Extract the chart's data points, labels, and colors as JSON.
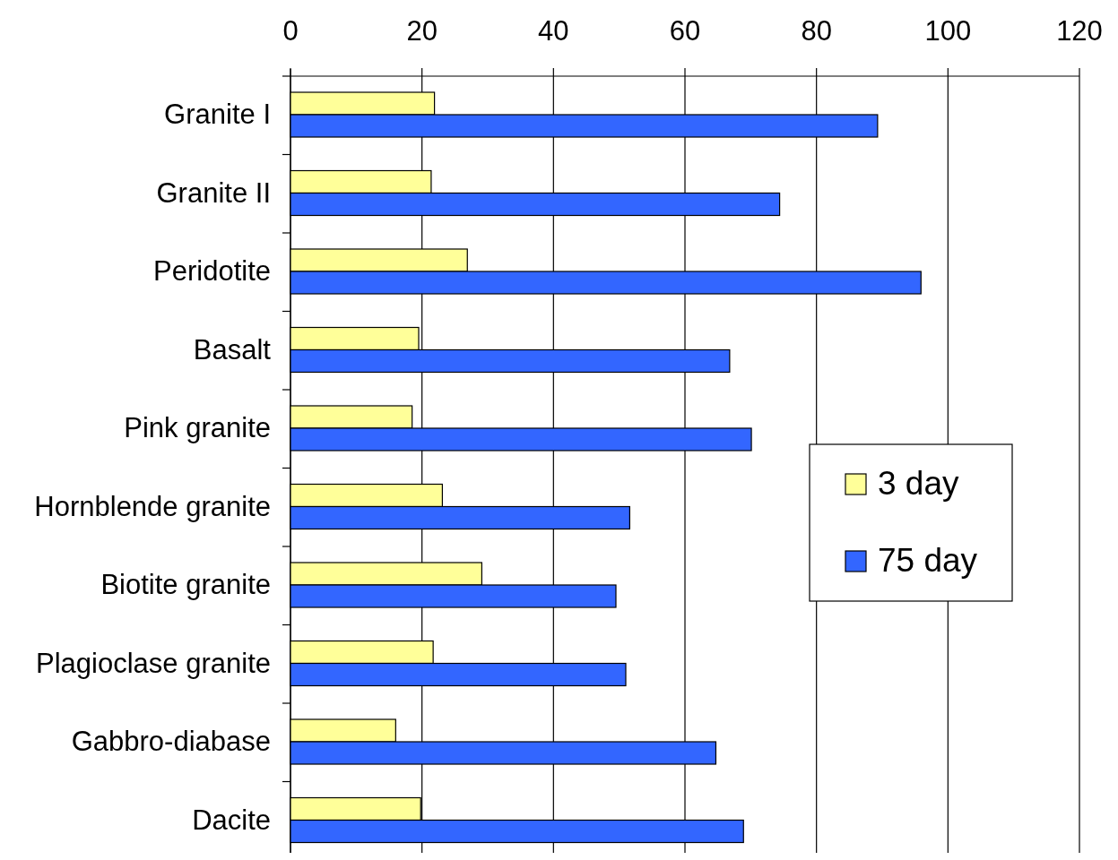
{
  "chart_data": {
    "type": "bar",
    "orientation": "horizontal",
    "categories": [
      "Granite I",
      "Granite II",
      "Peridotite",
      "Basalt",
      "Pink granite",
      "Hornblende granite",
      "Biotite granite",
      "Plagioclase granite",
      "Gabbro-diabase",
      "Dacite"
    ],
    "series": [
      {
        "name": "3 day",
        "color": "#ffff99",
        "values": [
          21.9,
          21.4,
          26.9,
          19.5,
          18.5,
          23.1,
          29.1,
          21.7,
          16.0,
          19.8
        ]
      },
      {
        "name": "75 day",
        "color": "#3366ff",
        "values": [
          89.3,
          74.4,
          95.9,
          66.8,
          70.1,
          51.6,
          49.5,
          51.0,
          64.7,
          68.9
        ]
      }
    ],
    "xlim": [
      0,
      120
    ],
    "xticks": [
      0,
      20,
      40,
      60,
      80,
      100,
      120
    ],
    "grid": "x",
    "legend": "right"
  }
}
